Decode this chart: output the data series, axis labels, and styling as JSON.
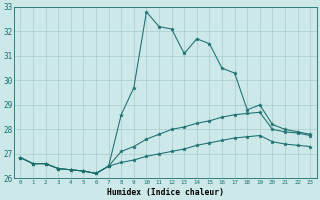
{
  "xlabel": "Humidex (Indice chaleur)",
  "bg_color": "#cce8e8",
  "grid_color": "#aacccc",
  "line_color": "#1a6e6e",
  "xlim": [
    -0.5,
    23.5
  ],
  "ylim": [
    26,
    33
  ],
  "yticks": [
    26,
    27,
    28,
    29,
    30,
    31,
    32,
    33
  ],
  "xticks": [
    0,
    1,
    2,
    3,
    4,
    5,
    6,
    7,
    8,
    9,
    10,
    11,
    12,
    13,
    14,
    15,
    16,
    17,
    18,
    19,
    20,
    21,
    22,
    23
  ],
  "series1": {
    "x": [
      0,
      1,
      2,
      3,
      4,
      5,
      6,
      7,
      8,
      9,
      10,
      11,
      12,
      13,
      14,
      15,
      16,
      17,
      18,
      19,
      20,
      21,
      22,
      23
    ],
    "y": [
      26.85,
      26.6,
      26.6,
      26.4,
      26.35,
      26.3,
      26.2,
      26.5,
      28.6,
      29.7,
      32.8,
      32.2,
      32.1,
      31.1,
      31.7,
      31.5,
      30.5,
      30.3,
      28.8,
      29.0,
      28.2,
      28.0,
      27.9,
      27.8
    ]
  },
  "series2": {
    "x": [
      0,
      1,
      2,
      3,
      4,
      5,
      6,
      7,
      8,
      9,
      10,
      11,
      12,
      13,
      14,
      15,
      16,
      17,
      18,
      19,
      20,
      21,
      22,
      23
    ],
    "y": [
      26.85,
      26.6,
      26.6,
      26.4,
      26.35,
      26.3,
      26.2,
      26.5,
      27.1,
      27.3,
      27.6,
      27.8,
      28.0,
      28.1,
      28.25,
      28.35,
      28.5,
      28.6,
      28.65,
      28.7,
      28.0,
      27.9,
      27.85,
      27.75
    ]
  },
  "series3": {
    "x": [
      0,
      1,
      2,
      3,
      4,
      5,
      6,
      7,
      8,
      9,
      10,
      11,
      12,
      13,
      14,
      15,
      16,
      17,
      18,
      19,
      20,
      21,
      22,
      23
    ],
    "y": [
      26.85,
      26.6,
      26.6,
      26.4,
      26.35,
      26.3,
      26.2,
      26.5,
      26.65,
      26.75,
      26.9,
      27.0,
      27.1,
      27.2,
      27.35,
      27.45,
      27.55,
      27.65,
      27.7,
      27.75,
      27.5,
      27.4,
      27.35,
      27.3
    ]
  }
}
